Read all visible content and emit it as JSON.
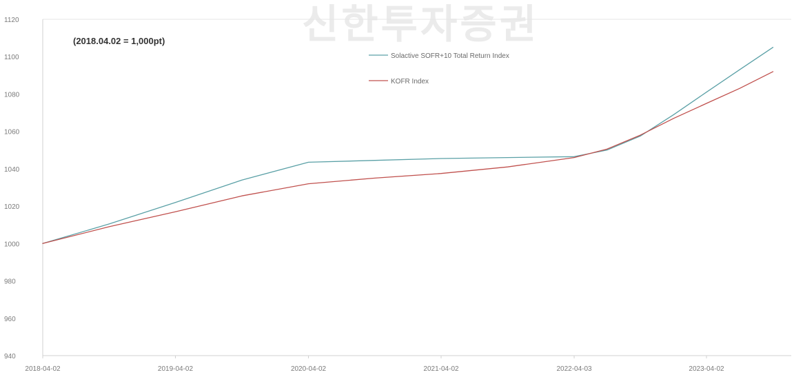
{
  "watermark": "신한투자증권",
  "chart_data": {
    "type": "line",
    "note": "(2018.04.02 = 1,000pt)",
    "x_ticks": [
      "2018-04-02",
      "2019-04-02",
      "2020-04-02",
      "2021-04-02",
      "2022-04-03",
      "2023-04-02"
    ],
    "ylim": [
      940,
      1120
    ],
    "y_ticks": [
      940,
      960,
      980,
      1000,
      1020,
      1040,
      1060,
      1080,
      1100,
      1120
    ],
    "grid": false,
    "legend_position": "top-center",
    "series": [
      {
        "name": "Solactive SOFR+10 Total Return Index",
        "color": "#5aa0a6",
        "x": [
          "2018-04-02",
          "2018-10-02",
          "2019-04-02",
          "2019-10-02",
          "2020-04-02",
          "2020-10-02",
          "2021-04-02",
          "2021-10-02",
          "2022-04-03",
          "2022-07-02",
          "2022-10-02",
          "2023-01-02",
          "2023-04-02",
          "2023-07-02",
          "2023-10-02"
        ],
        "y": [
          1000,
          1010.5,
          1022,
          1034,
          1043.5,
          1044.5,
          1045.5,
          1046,
          1046.5,
          1050,
          1057.5,
          1069,
          1081,
          1093,
          1105
        ]
      },
      {
        "name": "KOFR Index",
        "color": "#c0504d",
        "x": [
          "2018-04-02",
          "2018-10-02",
          "2019-04-02",
          "2019-10-02",
          "2020-04-02",
          "2020-10-02",
          "2021-04-02",
          "2021-10-02",
          "2022-04-03",
          "2022-07-02",
          "2022-10-02",
          "2023-01-02",
          "2023-04-02",
          "2023-07-02",
          "2023-10-02"
        ],
        "y": [
          1000,
          1009,
          1017,
          1025.5,
          1032,
          1035,
          1037.5,
          1041,
          1046,
          1050.5,
          1058,
          1067,
          1075,
          1083,
          1092
        ]
      }
    ]
  }
}
